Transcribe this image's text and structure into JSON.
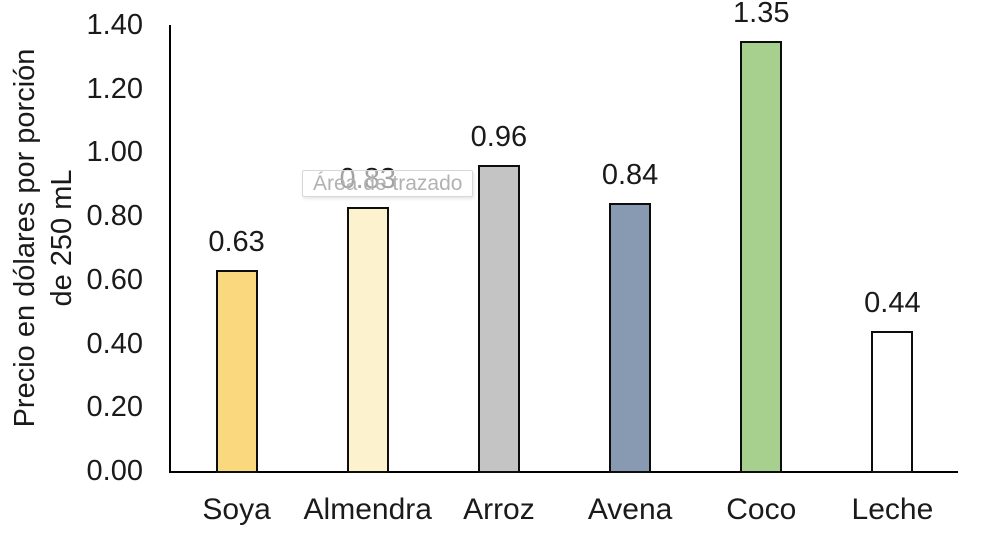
{
  "chart_data": {
    "type": "bar",
    "categories": [
      "Soya",
      "Almendra",
      "Arroz",
      "Avena",
      "Coco",
      "Leche"
    ],
    "values": [
      0.63,
      0.83,
      0.96,
      0.84,
      1.35,
      0.44
    ],
    "value_labels": [
      "0.63",
      "0.83",
      "0.96",
      "0.84",
      "1.35",
      "0.44"
    ],
    "bar_colors": [
      "#FAD97E",
      "#FDF2CE",
      "#C4C4C4",
      "#8899B2",
      "#A7D08E",
      "#FFFFFF"
    ],
    "bar_border_color": "#0d0d0d",
    "title": "",
    "xlabel": "",
    "ylabel": "Precio en dólares por porción de 250 mL",
    "ylabel_lines": [
      "Precio en dólares por porción",
      "de 250 mL"
    ],
    "ylim": [
      0,
      1.4
    ],
    "y_ticks": [
      "0.00",
      "0.20",
      "0.40",
      "0.60",
      "0.80",
      "1.00",
      "1.20",
      "1.40"
    ],
    "grid": false,
    "legend": false
  },
  "tooltip": {
    "label": "Área de trazado"
  }
}
